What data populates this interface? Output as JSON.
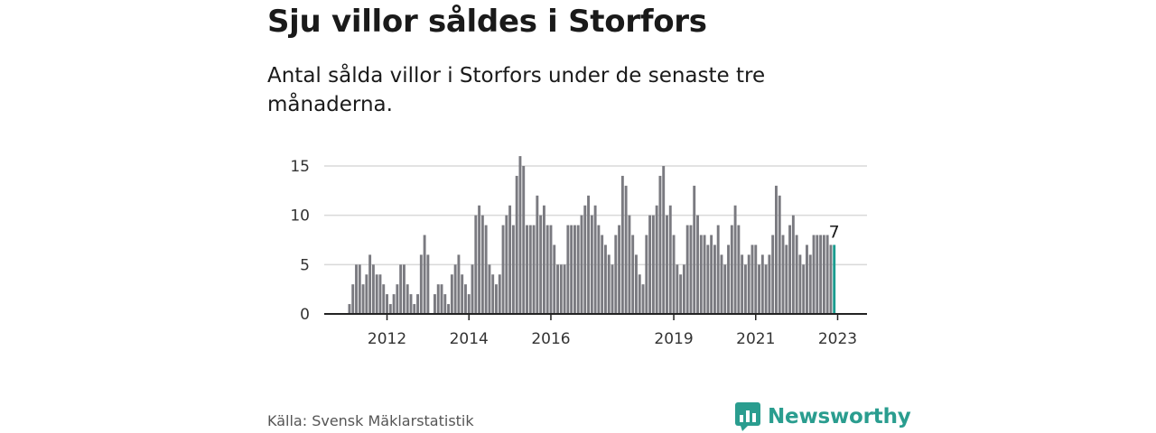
{
  "title": "Sju villor såldes i Storfors",
  "subtitle": "Antal sålda villor i Storfors under de senaste tre månaderna.",
  "source": "Källa: Svensk Mäklarstatistik",
  "brand": {
    "name": "Newsworthy",
    "icon": "newsworthy-logo-icon"
  },
  "colors": {
    "bar": "#7a7a80",
    "highlight": "#1a9c8f",
    "grid": "#d9d9d9",
    "axis": "#222222",
    "brand": "#2a9d8f"
  },
  "chart_data": {
    "type": "bar",
    "title": "Sju villor såldes i Storfors",
    "subtitle": "Antal sålda villor i Storfors under de senaste tre månaderna.",
    "xlabel": "",
    "ylabel": "",
    "ylim": [
      0,
      16
    ],
    "yticks": [
      0,
      5,
      10,
      15
    ],
    "xtick_labels": [
      "2012",
      "2014",
      "2016",
      "2019",
      "2021",
      "2023"
    ],
    "xtick_months": [
      11,
      35,
      59,
      95,
      119,
      143
    ],
    "start": "2011-12",
    "frequency": "monthly",
    "grid": true,
    "annotations": [
      {
        "text": "7",
        "target": "last"
      }
    ],
    "values": [
      1,
      3,
      5,
      5,
      3,
      4,
      6,
      5,
      4,
      4,
      3,
      2,
      1,
      2,
      3,
      5,
      5,
      3,
      2,
      1,
      2,
      6,
      8,
      6,
      0,
      2,
      3,
      3,
      2,
      1,
      4,
      5,
      6,
      4,
      3,
      2,
      5,
      10,
      11,
      10,
      9,
      5,
      4,
      3,
      4,
      9,
      10,
      11,
      9,
      14,
      16,
      15,
      9,
      9,
      9,
      12,
      10,
      11,
      9,
      9,
      7,
      5,
      5,
      5,
      9,
      9,
      9,
      9,
      10,
      11,
      12,
      10,
      11,
      9,
      8,
      7,
      6,
      5,
      8,
      9,
      14,
      13,
      10,
      8,
      6,
      4,
      3,
      8,
      10,
      10,
      11,
      14,
      15,
      10,
      11,
      8,
      5,
      4,
      5,
      9,
      9,
      13,
      10,
      8,
      8,
      7,
      8,
      7,
      9,
      6,
      5,
      7,
      9,
      11,
      9,
      6,
      5,
      6,
      7,
      7,
      5,
      6,
      5,
      6,
      8,
      13,
      12,
      8,
      7,
      9,
      10,
      8,
      6,
      5,
      7,
      6,
      8,
      8,
      8,
      8,
      8,
      7,
      7
    ]
  }
}
